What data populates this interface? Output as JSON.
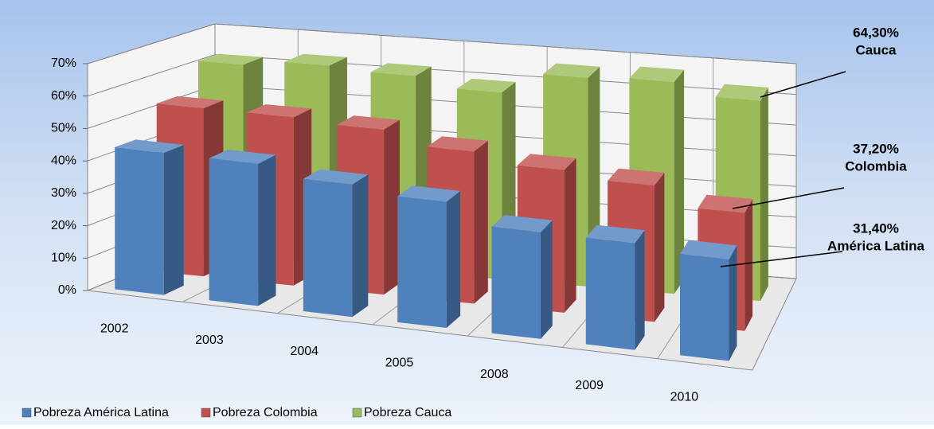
{
  "chart_data": {
    "type": "bar3d",
    "categories": [
      "2002",
      "2003",
      "2004",
      "2005",
      "2008",
      "2009",
      "2010"
    ],
    "series": [
      {
        "name": "Pobreza América Latina",
        "color": "#4f81bd",
        "values": [
          44,
          44,
          41,
          39,
          33,
          33,
          31.4
        ]
      },
      {
        "name": "Pobreza Colombia",
        "color": "#c0504d",
        "values": [
          53,
          53,
          52,
          48,
          45,
          43,
          37.2
        ]
      },
      {
        "name": "Pobreza Cauca",
        "color": "#9bbb59",
        "values": [
          62,
          64,
          63,
          60,
          67,
          68,
          64.3
        ]
      }
    ],
    "ylim": [
      0,
      70
    ],
    "yticks": [
      {
        "value": 0,
        "label": "0%"
      },
      {
        "value": 10,
        "label": "10%"
      },
      {
        "value": 20,
        "label": "20%"
      },
      {
        "value": 30,
        "label": "30%"
      },
      {
        "value": 40,
        "label": "40%"
      },
      {
        "value": 50,
        "label": "50%"
      },
      {
        "value": 60,
        "label": "60%"
      },
      {
        "value": 70,
        "label": "70%"
      }
    ],
    "grid": true,
    "legend": "bottom",
    "annotations": [
      {
        "text": "64,30%",
        "label": "Cauca"
      },
      {
        "text": "37,20%",
        "label": "Colombia"
      },
      {
        "text": "31,40%",
        "label": "América Latina"
      }
    ]
  }
}
